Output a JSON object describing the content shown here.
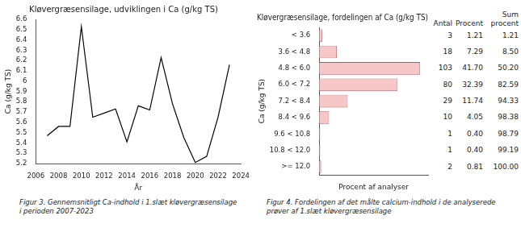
{
  "chart_data": [
    {
      "type": "line",
      "title": "Kløvergræsensilage, udviklingen i Ca (g/kg TS)",
      "x_label": "År",
      "y_label": "Ca (g/kg TS)",
      "x": [
        2007,
        2008,
        2009,
        2010,
        2011,
        2012,
        2013,
        2014,
        2015,
        2016,
        2017,
        2018,
        2019,
        2020,
        2021,
        2022,
        2023
      ],
      "values": [
        5.47,
        5.56,
        5.56,
        6.53,
        5.65,
        5.69,
        5.73,
        5.41,
        5.76,
        5.72,
        6.23,
        5.78,
        5.45,
        5.21,
        5.27,
        5.65,
        6.16
      ],
      "color": "#000000",
      "marker": "none",
      "xlim": [
        2006,
        2024
      ],
      "xticks": [
        2006,
        2008,
        2010,
        2012,
        2014,
        2016,
        2018,
        2020,
        2022,
        2024
      ],
      "ylim": [
        5.2,
        6.6
      ],
      "yticks": [
        5.2,
        5.3,
        5.4,
        5.5,
        5.6,
        5.7,
        5.8,
        5.9,
        6.0,
        6.1,
        6.2,
        6.3,
        6.4,
        6.5,
        6.6
      ],
      "grid": false
    },
    {
      "type": "bar",
      "title": "Kløvergræsensilage, fordelingen af Ca (g/kg TS)",
      "x_label": "Procent af analyser",
      "y_label": "Ca (g/kg TS)",
      "orientation": "horizontal",
      "categories": [
        "< 3.6",
        "3.6 < 4.8",
        "4.8 < 6.0",
        "6.0 < 7.2",
        "7.2 < 8.4",
        "8.4 < 9.6",
        "9.6 < 10.8",
        "10.8 < 12.0",
        ">= 12.0"
      ],
      "values": [
        1.21,
        7.29,
        41.7,
        32.39,
        11.74,
        4.05,
        0.4,
        0.4,
        0.81
      ],
      "color": "#f7c6c6",
      "xlim": [
        0,
        45
      ],
      "tick_labels": "y",
      "grid": false
    }
  ],
  "table": {
    "columns": [
      "Antal",
      "Procent",
      "Sum procent"
    ],
    "rows": [
      [
        3,
        "1.21",
        "1.21"
      ],
      [
        18,
        "7.29",
        "8.50"
      ],
      [
        103,
        "41.70",
        "50.20"
      ],
      [
        80,
        "32.39",
        "82.59"
      ],
      [
        29,
        "11.74",
        "94.33"
      ],
      [
        10,
        "4.05",
        "98.38"
      ],
      [
        1,
        "0.40",
        "98.79"
      ],
      [
        1,
        "0.40",
        "99.19"
      ],
      [
        2,
        "0.81",
        "100.00"
      ]
    ]
  },
  "captions": [
    "Figur 3. Gennemsnitligt Ca-indhold i 1.slæt kløvergræsensilage i perioden 2007-2023",
    "Figur 4. Fordelingen af det målte calcium-indhold i de analyserede prøver af 1.slæt kløvergræsensilage"
  ]
}
